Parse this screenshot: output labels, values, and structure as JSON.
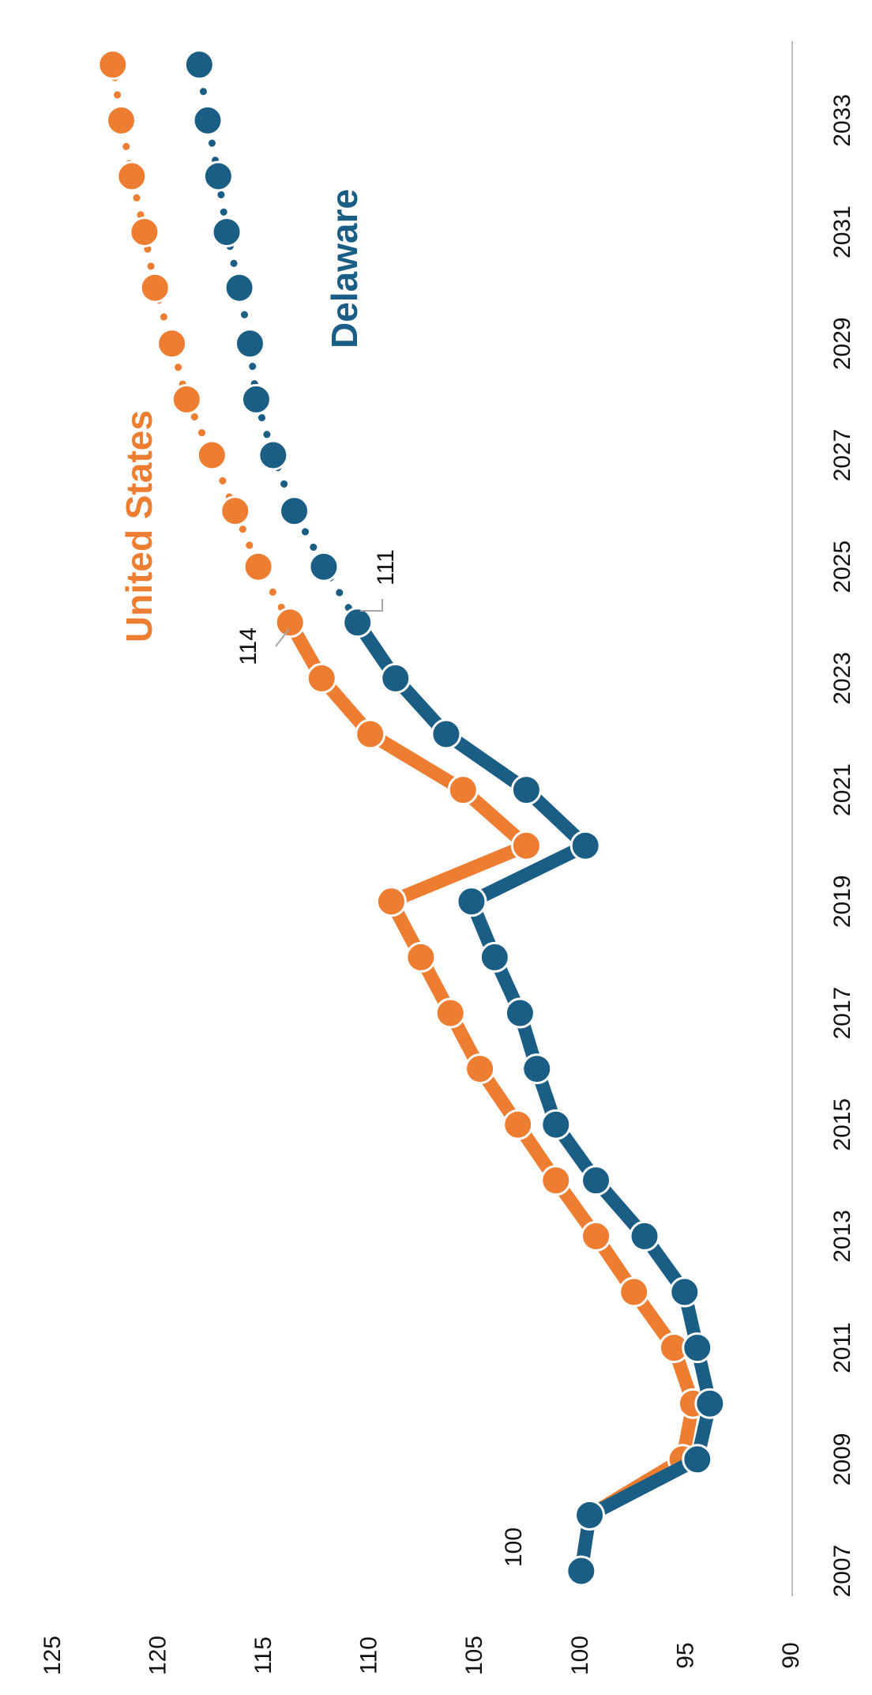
{
  "chart_data": {
    "type": "line",
    "orientation": "rotated-90-clockwise",
    "x": [
      2007,
      2008,
      2009,
      2010,
      2011,
      2012,
      2013,
      2014,
      2015,
      2016,
      2017,
      2018,
      2019,
      2020,
      2021,
      2022,
      2023,
      2024,
      2025,
      2026,
      2027,
      2028,
      2029,
      2030,
      2031,
      2032,
      2033,
      2034
    ],
    "x_tick_labels": [
      "2007",
      "2009",
      "2011",
      "2013",
      "2015",
      "2017",
      "2019",
      "2021",
      "2023",
      "2025",
      "2027",
      "2029",
      "2031",
      "2033"
    ],
    "y_tick_labels": [
      "90",
      "95",
      "100",
      "105",
      "110",
      "115",
      "120",
      "125"
    ],
    "ylim": [
      90,
      125
    ],
    "actual_through": 2024,
    "projection_style": "dotted",
    "series": [
      {
        "name": "United States",
        "color": "#ED7D31",
        "values": [
          100,
          99.6,
          95.2,
          94.7,
          95.6,
          97.5,
          99.3,
          101.2,
          103.0,
          104.8,
          106.2,
          107.6,
          109.0,
          102.6,
          105.6,
          110.0,
          112.3,
          113.8,
          115.3,
          116.4,
          117.5,
          118.7,
          119.4,
          120.2,
          120.7,
          121.3,
          121.8,
          122.2
        ]
      },
      {
        "name": "Delaware",
        "color": "#1B5E85",
        "values": [
          100,
          99.6,
          94.5,
          93.9,
          94.5,
          95.1,
          97.0,
          99.3,
          101.2,
          102.1,
          102.9,
          104.1,
          105.2,
          99.8,
          102.6,
          106.4,
          108.8,
          110.6,
          112.2,
          113.6,
          114.6,
          115.4,
          115.7,
          116.2,
          116.8,
          117.2,
          117.7,
          118.1
        ]
      }
    ],
    "annotations": [
      {
        "text": "100",
        "year": 2007,
        "series": "both"
      },
      {
        "text": "114",
        "year": 2024,
        "series": "United States"
      },
      {
        "text": "111",
        "year": 2024,
        "series": "Delaware"
      }
    ],
    "grid": false,
    "legend": "inline labels"
  }
}
